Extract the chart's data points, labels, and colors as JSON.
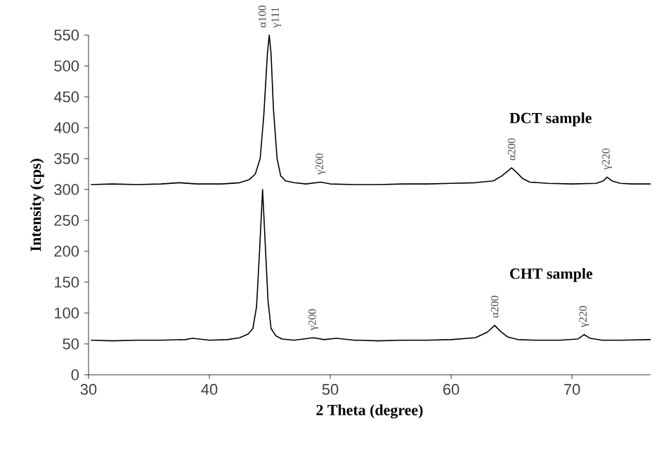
{
  "chart_data": {
    "type": "line",
    "xlabel": "2 Theta (degree)",
    "ylabel": "Intensity (cps)",
    "xlim": [
      30,
      76.5
    ],
    "ylim": [
      0,
      550
    ],
    "xticks": [
      30,
      40,
      50,
      60,
      70
    ],
    "yticks": [
      0,
      50,
      100,
      150,
      200,
      250,
      300,
      350,
      400,
      450,
      500,
      550
    ],
    "grid": false,
    "legend": false,
    "marker": "none",
    "line_style": "solid",
    "series": [
      {
        "name": "DCT sample",
        "color": "#000000",
        "x": [
          30.2,
          32,
          34,
          36,
          37.5,
          39,
          41,
          42.5,
          43.3,
          43.8,
          44.2,
          44.5,
          44.8,
          44.95,
          45.1,
          45.3,
          45.6,
          45.9,
          46.3,
          47,
          48,
          49.2,
          50,
          52,
          54,
          56,
          58,
          60,
          62,
          63.5,
          64.2,
          64.7,
          65.0,
          65.4,
          65.9,
          66.5,
          68,
          70,
          72,
          72.6,
          72.9,
          73.3,
          74,
          75,
          76.5
        ],
        "values": [
          308,
          309,
          308,
          309,
          311,
          309,
          309,
          311,
          316,
          325,
          350,
          420,
          520,
          550,
          520,
          430,
          350,
          322,
          314,
          311,
          309,
          312,
          309,
          308,
          308,
          309,
          309,
          310,
          311,
          314,
          322,
          330,
          335,
          328,
          318,
          312,
          310,
          309,
          310,
          314,
          320,
          314,
          310,
          309,
          309
        ]
      },
      {
        "name": "CHT sample",
        "color": "#000000",
        "x": [
          30.2,
          32,
          34,
          36,
          38,
          38.6,
          40,
          41.5,
          42.5,
          43.2,
          43.6,
          43.9,
          44.15,
          44.4,
          44.6,
          44.85,
          45.1,
          45.5,
          46,
          47,
          48.6,
          49.5,
          50.5,
          52,
          54,
          56,
          58,
          60,
          62,
          63,
          63.6,
          64.1,
          64.7,
          65.5,
          67,
          69,
          70.5,
          71,
          71.5,
          72.5,
          74,
          76.5
        ],
        "values": [
          56,
          55,
          56,
          56,
          57,
          59,
          56,
          57,
          60,
          66,
          75,
          110,
          200,
          300,
          220,
          120,
          75,
          63,
          58,
          56,
          60,
          57,
          59,
          56,
          55,
          56,
          56,
          57,
          60,
          69,
          80,
          70,
          61,
          57,
          56,
          56,
          58,
          65,
          59,
          56,
          56,
          57
        ]
      }
    ],
    "annotations": [
      {
        "text": "α100",
        "x": 44.95,
        "y": 550
      },
      {
        "text": "γ111",
        "x": 44.95,
        "y": 550
      },
      {
        "text": "γ200",
        "x": 49.2,
        "y": 312
      },
      {
        "text": "α200",
        "x": 65.0,
        "y": 335
      },
      {
        "text": "γ220",
        "x": 72.9,
        "y": 320
      },
      {
        "text": "γ200",
        "x": 48.6,
        "y": 60
      },
      {
        "text": "α200",
        "x": 63.6,
        "y": 80
      },
      {
        "text": "γ220",
        "x": 71.0,
        "y": 65
      }
    ]
  }
}
